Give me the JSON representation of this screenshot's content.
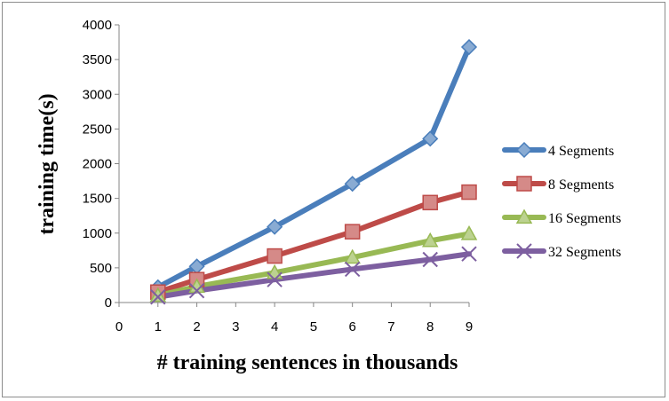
{
  "chart_data": {
    "type": "line",
    "title": "",
    "xlabel": "# training sentences in thousands",
    "ylabel": "training time(s)",
    "xlim": [
      0,
      9
    ],
    "ylim": [
      0,
      4000
    ],
    "x_ticks": [
      0,
      1,
      2,
      3,
      4,
      5,
      6,
      7,
      8,
      9
    ],
    "y_ticks": [
      0,
      500,
      1000,
      1500,
      2000,
      2500,
      3000,
      3500,
      4000
    ],
    "grid": false,
    "legend": "right",
    "x": [
      1,
      2,
      4,
      6,
      8,
      9
    ],
    "series": [
      {
        "name": "4 Segments",
        "values": [
          220,
          520,
          1090,
          1710,
          2360,
          3680
        ],
        "color": "#4a7ebb",
        "marker": "diamond"
      },
      {
        "name": "8 Segments",
        "values": [
          150,
          330,
          670,
          1020,
          1440,
          1590
        ],
        "color": "#be4b48",
        "marker": "square"
      },
      {
        "name": "16 Segments",
        "values": [
          100,
          230,
          430,
          650,
          890,
          990
        ],
        "color": "#98b954",
        "marker": "triangle"
      },
      {
        "name": "32 Segments",
        "values": [
          80,
          170,
          330,
          480,
          620,
          700
        ],
        "color": "#7d5fa0",
        "marker": "x"
      }
    ]
  }
}
